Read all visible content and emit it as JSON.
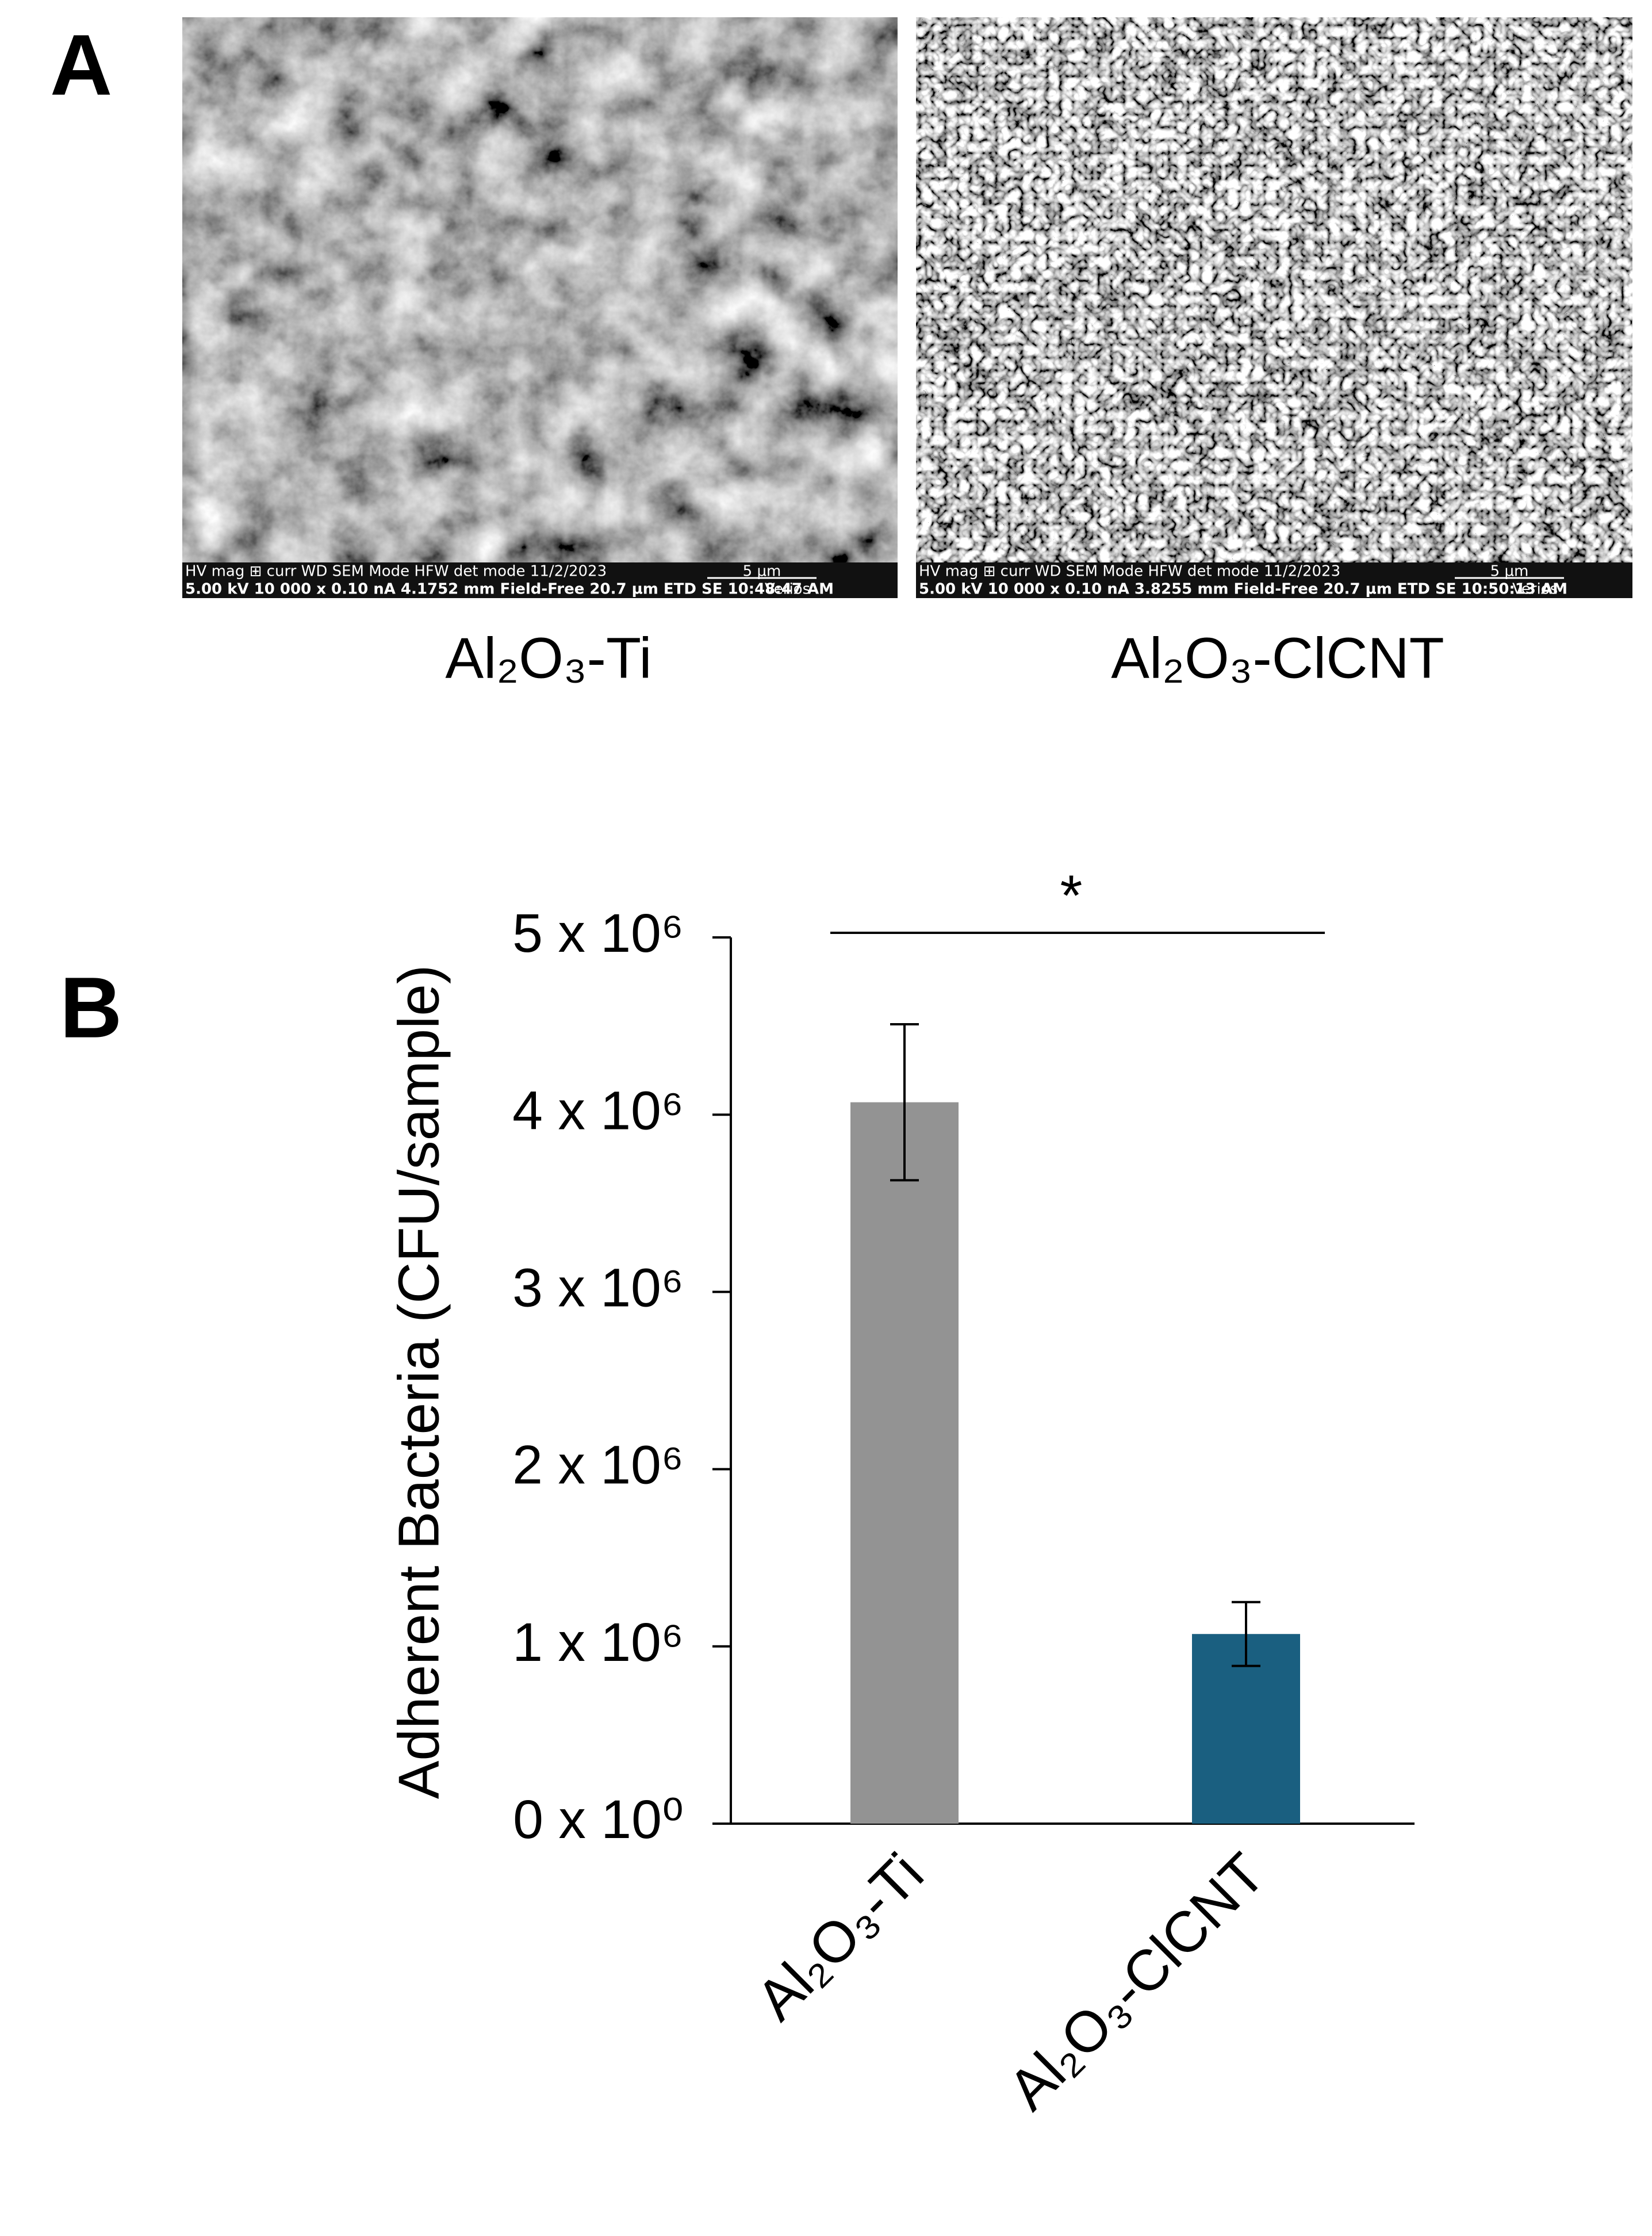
{
  "panel_a": {
    "label": "A",
    "images": [
      {
        "caption": "Al₂O₃-Ti",
        "databar": {
          "header": "HV    mag  ⊞ curr    WD        SEM Mode  HFW    det   mode   11/2/2023",
          "values": "5.00 kV 10 000 x 0.10 nA 4.1752 mm Field-Free 20.7 µm ETD SE  10:48:47 AM",
          "scale": "5 µm",
          "instrument": "Verios"
        }
      },
      {
        "caption": "Al₂O₃-ClCNT",
        "databar": {
          "header": "HV    mag  ⊞ curr    WD        SEM Mode  HFW    det   mode   11/2/2023",
          "values": "5.00 kV 10 000 x 0.10 nA 3.8255 mm Field-Free 20.7 µm ETD SE  10:50:13 AM",
          "scale": "5 µm",
          "instrument": "Verios"
        }
      }
    ]
  },
  "panel_b": {
    "label": "B"
  },
  "chart_data": {
    "type": "bar",
    "y_label": "Adherent Bacteria (CFU/sample)",
    "categories": [
      "Al₂O₃-Ti",
      "Al₂O₃-ClCNT"
    ],
    "values": [
      4070000,
      1070000
    ],
    "errors": [
      440000,
      180000
    ],
    "colors": [
      "#939393",
      "#1a5f80"
    ],
    "ylim": [
      0,
      5000000
    ],
    "yticks": [
      {
        "value": 0,
        "label": "0 x 10⁰"
      },
      {
        "value": 1000000,
        "label": "1 x 10⁶"
      },
      {
        "value": 2000000,
        "label": "2 x 10⁶"
      },
      {
        "value": 3000000,
        "label": "3 x 10⁶"
      },
      {
        "value": 4000000,
        "label": "4 x 10⁶"
      },
      {
        "value": 5000000,
        "label": "5 x 10⁶"
      }
    ],
    "grid": false,
    "annotation": "*"
  }
}
